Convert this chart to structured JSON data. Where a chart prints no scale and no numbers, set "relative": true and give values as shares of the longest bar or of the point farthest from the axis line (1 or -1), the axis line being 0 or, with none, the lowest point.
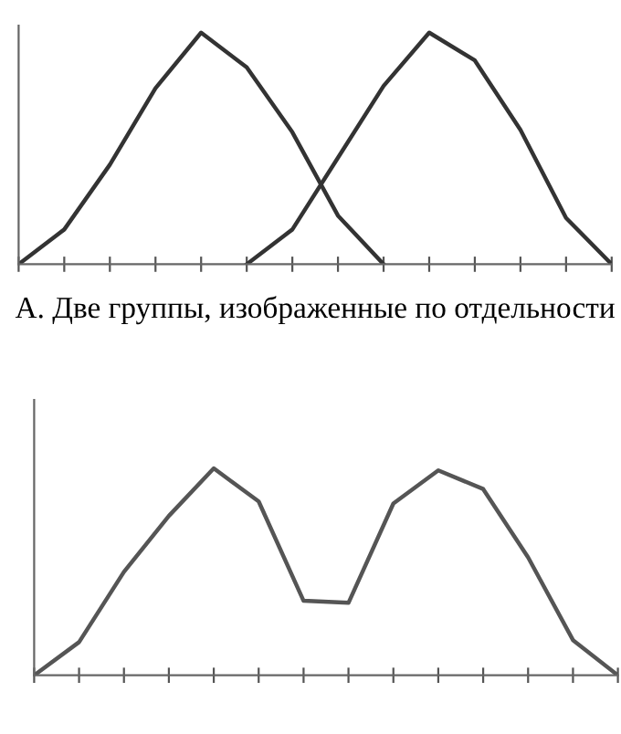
{
  "chart_data": [
    {
      "type": "line",
      "relative": true,
      "xlabel": "А. Две группы, изображенные по отдельности",
      "categories": [
        null,
        null,
        null,
        null,
        null,
        null,
        null,
        null,
        null,
        null,
        null,
        null,
        null,
        null
      ],
      "series": [
        {
          "color": "#333333",
          "values": [
            0,
            0.15,
            0.43,
            0.76,
            1,
            0.85,
            0.57,
            0.21,
            0,
            null,
            null,
            null,
            null,
            null
          ]
        },
        {
          "color": "#333333",
          "values": [
            null,
            null,
            null,
            null,
            null,
            0,
            0.15,
            0.46,
            0.77,
            1,
            0.88,
            0.58,
            0.2,
            0
          ]
        }
      ],
      "grid": false,
      "marker": "none",
      "line_style": "solid"
    },
    {
      "type": "line",
      "relative": true,
      "categories": [
        null,
        null,
        null,
        null,
        null,
        null,
        null,
        null,
        null,
        null,
        null,
        null,
        null,
        null
      ],
      "series": [
        {
          "color": "#555555",
          "values": [
            0,
            0.16,
            0.5,
            0.77,
            1,
            0.84,
            0.36,
            0.35,
            0.83,
            0.99,
            0.9,
            0.57,
            0.17,
            0
          ]
        }
      ],
      "grid": false,
      "marker": "none",
      "line_style": "solid"
    }
  ]
}
